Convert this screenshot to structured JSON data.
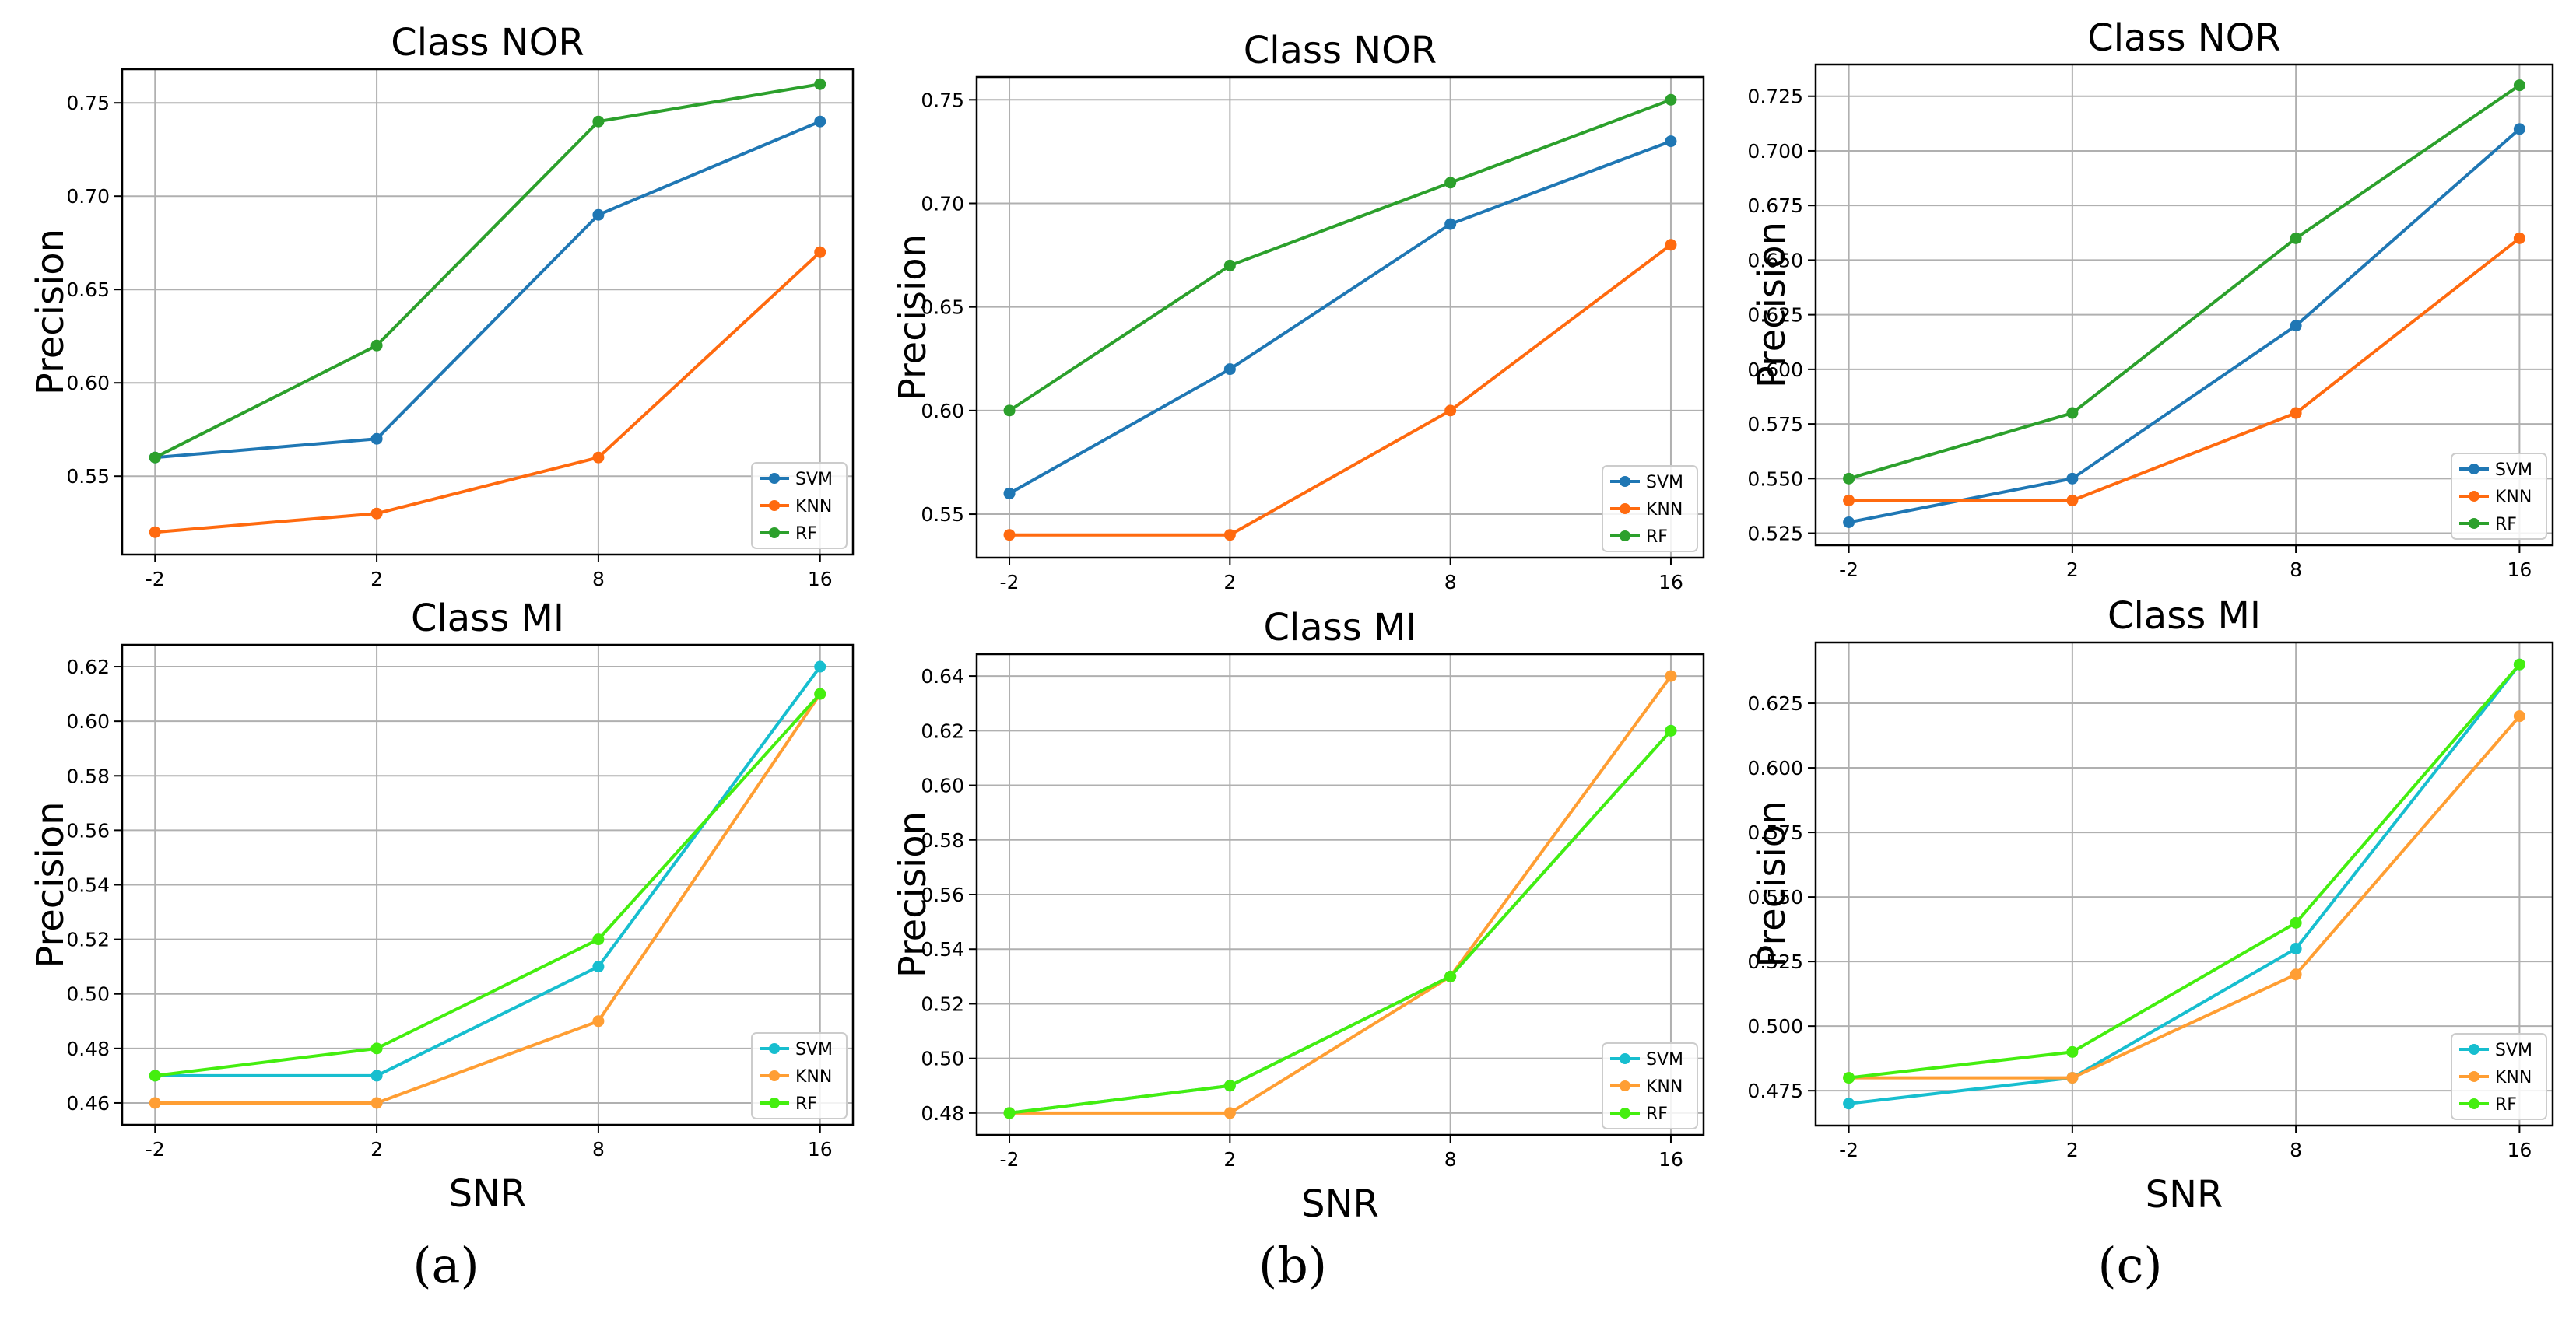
{
  "figure": {
    "panel_labels": [
      "(a)",
      "(b)",
      "(c)"
    ],
    "legend_labels": [
      "SVM",
      "KNN",
      "RF"
    ]
  },
  "colors": {
    "NOR": {
      "SVM": "#1f77b4",
      "KNN": "#ff6a0f",
      "RF": "#2ca02c"
    },
    "MI": {
      "SVM": "#17becf",
      "KNN": "#ff9e33",
      "RF": "#44ee0f"
    },
    "grid": "#b0b0b0",
    "axis": "#000000"
  },
  "chart_data": [
    {
      "panel": "a",
      "row": "top",
      "type": "line",
      "title": "Class NOR",
      "xlabel": "",
      "ylabel": "Precision",
      "categories": [
        "-2",
        "2",
        "8",
        "16"
      ],
      "yticks": [
        "0.55",
        "0.60",
        "0.65",
        "0.70",
        "0.75"
      ],
      "ytick_values": [
        0.55,
        0.6,
        0.65,
        0.7,
        0.75
      ],
      "ylim": [
        0.508,
        0.768
      ],
      "legend": "lower-right",
      "grid": true,
      "series": [
        {
          "name": "SVM",
          "values": [
            0.56,
            0.57,
            0.69,
            0.74
          ]
        },
        {
          "name": "KNN",
          "values": [
            0.52,
            0.53,
            0.56,
            0.67
          ]
        },
        {
          "name": "RF",
          "values": [
            0.56,
            0.62,
            0.74,
            0.76
          ]
        }
      ]
    },
    {
      "panel": "b",
      "row": "top",
      "type": "line",
      "title": "Class NOR",
      "xlabel": "",
      "ylabel": "Precision",
      "categories": [
        "-2",
        "2",
        "8",
        "16"
      ],
      "yticks": [
        "0.55",
        "0.60",
        "0.65",
        "0.70",
        "0.75"
      ],
      "ytick_values": [
        0.55,
        0.6,
        0.65,
        0.7,
        0.75
      ],
      "ylim": [
        0.529,
        0.761
      ],
      "legend": "lower-right",
      "grid": true,
      "series": [
        {
          "name": "SVM",
          "values": [
            0.56,
            0.62,
            0.69,
            0.73
          ]
        },
        {
          "name": "KNN",
          "values": [
            0.54,
            0.54,
            0.6,
            0.68
          ]
        },
        {
          "name": "RF",
          "values": [
            0.6,
            0.67,
            0.71,
            0.75
          ]
        }
      ]
    },
    {
      "panel": "c",
      "row": "top",
      "type": "line",
      "title": "Class NOR",
      "xlabel": "",
      "ylabel": "Precision",
      "categories": [
        "-2",
        "2",
        "8",
        "16"
      ],
      "yticks": [
        "0.525",
        "0.550",
        "0.575",
        "0.600",
        "0.625",
        "0.650",
        "0.675",
        "0.700",
        "0.725"
      ],
      "ytick_values": [
        0.525,
        0.55,
        0.575,
        0.6,
        0.625,
        0.65,
        0.675,
        0.7,
        0.725
      ],
      "ylim": [
        0.5195,
        0.7395
      ],
      "legend": "lower-right",
      "grid": true,
      "series": [
        {
          "name": "SVM",
          "values": [
            0.53,
            0.55,
            0.62,
            0.71
          ]
        },
        {
          "name": "KNN",
          "values": [
            0.54,
            0.54,
            0.58,
            0.66
          ]
        },
        {
          "name": "RF",
          "values": [
            0.55,
            0.58,
            0.66,
            0.73
          ]
        }
      ]
    },
    {
      "panel": "a",
      "row": "bottom",
      "type": "line",
      "title": "Class MI",
      "xlabel": "SNR",
      "ylabel": "Precision",
      "categories": [
        "-2",
        "2",
        "8",
        "16"
      ],
      "yticks": [
        "0.46",
        "0.48",
        "0.50",
        "0.52",
        "0.54",
        "0.56",
        "0.58",
        "0.60",
        "0.62"
      ],
      "ytick_values": [
        0.46,
        0.48,
        0.5,
        0.52,
        0.54,
        0.56,
        0.58,
        0.6,
        0.62
      ],
      "ylim": [
        0.452,
        0.628
      ],
      "legend": "lower-right",
      "grid": true,
      "series": [
        {
          "name": "SVM",
          "values": [
            0.47,
            0.47,
            0.51,
            0.62
          ]
        },
        {
          "name": "KNN",
          "values": [
            0.46,
            0.46,
            0.49,
            0.61
          ]
        },
        {
          "name": "RF",
          "values": [
            0.47,
            0.48,
            0.52,
            0.61
          ]
        }
      ]
    },
    {
      "panel": "b",
      "row": "bottom",
      "type": "line",
      "title": "Class MI",
      "xlabel": "SNR",
      "ylabel": "Precision",
      "categories": [
        "-2",
        "2",
        "8",
        "16"
      ],
      "yticks": [
        "0.48",
        "0.50",
        "0.52",
        "0.54",
        "0.56",
        "0.58",
        "0.60",
        "0.62",
        "0.64"
      ],
      "ytick_values": [
        0.48,
        0.5,
        0.52,
        0.54,
        0.56,
        0.58,
        0.6,
        0.62,
        0.64
      ],
      "ylim": [
        0.472,
        0.648
      ],
      "legend": "lower-right",
      "grid": true,
      "series": [
        {
          "name": "SVM",
          "values": [
            0.48,
            0.49,
            0.53,
            0.62
          ]
        },
        {
          "name": "KNN",
          "values": [
            0.48,
            0.48,
            0.53,
            0.64
          ]
        },
        {
          "name": "RF",
          "values": [
            0.48,
            0.49,
            0.53,
            0.62
          ]
        }
      ]
    },
    {
      "panel": "c",
      "row": "bottom",
      "type": "line",
      "title": "Class MI",
      "xlabel": "SNR",
      "ylabel": "Precision",
      "categories": [
        "-2",
        "2",
        "8",
        "16"
      ],
      "yticks": [
        "0.475",
        "0.500",
        "0.525",
        "0.550",
        "0.575",
        "0.600",
        "0.625"
      ],
      "ytick_values": [
        0.475,
        0.5,
        0.525,
        0.55,
        0.575,
        0.6,
        0.625
      ],
      "ylim": [
        0.4615,
        0.6485
      ],
      "legend": "lower-right",
      "grid": true,
      "series": [
        {
          "name": "SVM",
          "values": [
            0.47,
            0.48,
            0.53,
            0.64
          ]
        },
        {
          "name": "KNN",
          "values": [
            0.48,
            0.48,
            0.52,
            0.62
          ]
        },
        {
          "name": "RF",
          "values": [
            0.48,
            0.49,
            0.54,
            0.64
          ]
        }
      ]
    }
  ]
}
